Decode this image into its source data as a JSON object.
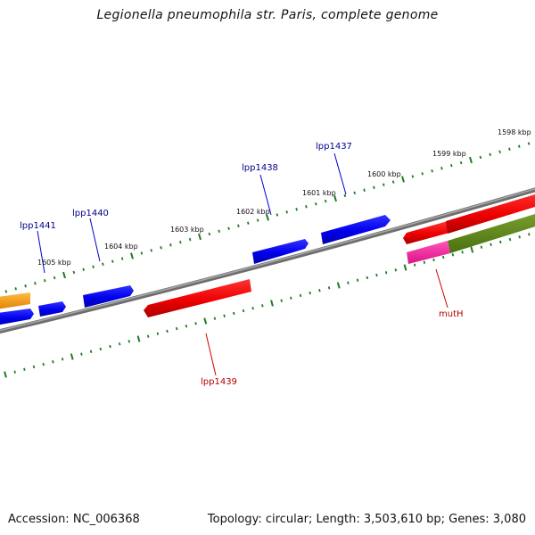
{
  "title": "Legionella pneumophila str. Paris, complete genome",
  "footer": {
    "accession": "Accession: NC_006368",
    "topology": "Topology: circular; Length: 3,503,610 bp; Genes: 3,080"
  },
  "colors": {
    "backbone": "#808080",
    "tick": "#1f7a1f",
    "forward_gene": "#0000ee",
    "reverse_gene": "#ee0000",
    "label_forward": "#00008b",
    "label_reverse": "#b30000",
    "orange_gene": "#ff9900",
    "magenta_gene": "#ff1493",
    "olive_gene": "#5a8a1a"
  },
  "kbp_labels": [
    "1598 kbp",
    "1599 kbp",
    "1600 kbp",
    "1601 kbp",
    "1602 kbp",
    "1603 kbp",
    "1604 kbp",
    "1605 kbp"
  ],
  "gene_labels": [
    {
      "text": "lpp1437",
      "strand": "forward"
    },
    {
      "text": "lpp1438",
      "strand": "forward"
    },
    {
      "text": "lpp1440",
      "strand": "forward"
    },
    {
      "text": "lpp1441",
      "strand": "forward"
    },
    {
      "text": "lpp1439",
      "strand": "reverse"
    },
    {
      "text": "mutH",
      "strand": "reverse"
    }
  ]
}
